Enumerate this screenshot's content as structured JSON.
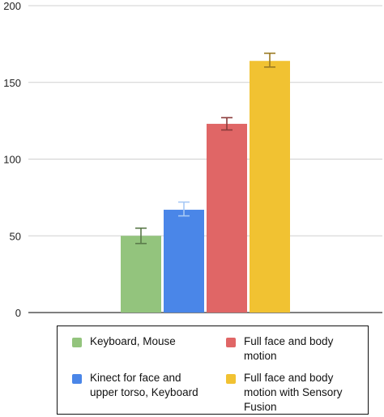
{
  "chart_data": {
    "type": "bar",
    "categories": [
      "Keyboard, Mouse",
      "Kinect for face and upper torso, Keyboard",
      "Full face and body motion",
      "Full face and body motion with Sensory Fusion"
    ],
    "values": [
      50,
      67,
      123,
      164
    ],
    "error_low": [
      45,
      63,
      119,
      160
    ],
    "error_high": [
      55,
      72,
      127,
      169
    ],
    "colors": [
      "#93c47d",
      "#4a86e8",
      "#e06666",
      "#f1c232"
    ],
    "error_colors": [
      "#5a7a4a",
      "#a6c8f5",
      "#8b3b3b",
      "#9a7a22"
    ],
    "ylim": [
      0,
      200
    ],
    "yticks": [
      0,
      50,
      100,
      150,
      200
    ],
    "grid": true,
    "legend_position": "bottom"
  },
  "legend": {
    "items": [
      {
        "label": "Keyboard, Mouse",
        "color": "#93c47d"
      },
      {
        "label": "Full face and body\nmotion",
        "color": "#e06666"
      },
      {
        "label": "Kinect for face and\nupper torso, Keyboard",
        "color": "#4a86e8"
      },
      {
        "label": "Full face and body\nmotion with Sensory\nFusion",
        "color": "#f1c232"
      }
    ]
  }
}
